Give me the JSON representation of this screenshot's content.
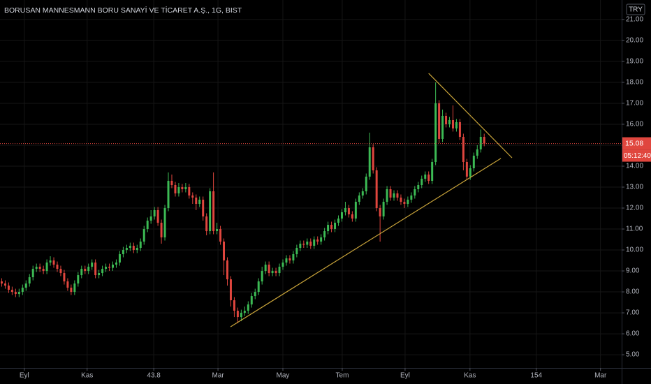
{
  "chart_data": {
    "type": "candlestick",
    "title": "BORUSAN MANNESMANN BORU SANAYİ VE TİCARET A.Ş., 1G, BIST",
    "currency": "TRY",
    "countdown": "05:12:40",
    "up_color": "#3cba54",
    "down_color": "#e0463e",
    "trend_color": "#c9a43a",
    "grid": true,
    "open": [
      8.5,
      8.4,
      8.3,
      8.1,
      8.0,
      7.9,
      8.0,
      8.2,
      8.4,
      8.7,
      9.1,
      9.2,
      9.1,
      9.0,
      9.4,
      9.5,
      9.3,
      9.1,
      8.9,
      8.5,
      8.2,
      8.0,
      8.4,
      8.8,
      9.1,
      9.0,
      9.2,
      9.4,
      8.8,
      8.9,
      9.1,
      9.2,
      9.15,
      9.3,
      9.4,
      9.8,
      10.0,
      10.1,
      10.2,
      10.0,
      10.1,
      10.4,
      11.0,
      11.4,
      11.6,
      11.9,
      11.3,
      10.6,
      12.0,
      13.3,
      13.1,
      12.7,
      13.0,
      12.9,
      13.0,
      12.6,
      12.5,
      12.2,
      12.4,
      11.6,
      10.9,
      12.8,
      10.9,
      11.0,
      10.4,
      9.5,
      8.6,
      7.6,
      7.1,
      6.8,
      7.0,
      7.1,
      7.4,
      7.8,
      8.0,
      8.5,
      9.0,
      9.3,
      8.9,
      9.0,
      8.9,
      9.2,
      9.4,
      9.6,
      9.5,
      9.8,
      10.1,
      10.3,
      10.25,
      10.4,
      10.2,
      10.5,
      10.4,
      10.6,
      10.9,
      11.2,
      11.0,
      11.3,
      11.5,
      11.8,
      12.0,
      11.7,
      11.5,
      12.3,
      12.6,
      12.8,
      13.5,
      14.9,
      13.8,
      12.0,
      11.6,
      12.3,
      12.9,
      12.5,
      12.7,
      12.5,
      12.3,
      12.2,
      12.4,
      12.6,
      12.9,
      13.1,
      13.4,
      13.6,
      13.3,
      14.2,
      17.0,
      15.3,
      16.4,
      16.0,
      16.2,
      15.8,
      16.1,
      15.4,
      14.2,
      13.5,
      13.9,
      14.5,
      14.8,
      15.4
    ],
    "high": [
      8.65,
      8.55,
      8.45,
      8.25,
      8.15,
      8.15,
      8.35,
      8.55,
      8.85,
      9.25,
      9.35,
      9.35,
      9.25,
      9.55,
      9.7,
      9.65,
      9.45,
      9.25,
      9.05,
      8.65,
      8.35,
      8.55,
      8.95,
      9.25,
      9.25,
      9.35,
      9.55,
      9.55,
      9.05,
      9.25,
      9.35,
      9.35,
      9.45,
      9.55,
      9.95,
      10.15,
      10.25,
      10.35,
      10.35,
      10.25,
      10.55,
      11.15,
      11.55,
      11.9,
      12.05,
      12.05,
      11.45,
      12.15,
      13.7,
      13.6,
      13.25,
      13.2,
      13.15,
      13.2,
      13.15,
      12.75,
      12.65,
      12.55,
      12.55,
      11.75,
      12.95,
      13.7,
      11.3,
      11.15,
      10.55,
      9.65,
      8.75,
      7.75,
      7.25,
      7.15,
      7.3,
      7.55,
      7.95,
      8.15,
      8.65,
      9.2,
      9.45,
      9.45,
      9.15,
      9.15,
      9.35,
      9.55,
      9.75,
      9.75,
      9.95,
      10.25,
      10.45,
      10.45,
      10.55,
      10.55,
      10.65,
      10.65,
      10.75,
      11.05,
      11.35,
      11.35,
      11.45,
      11.65,
      11.95,
      12.3,
      12.15,
      11.85,
      12.45,
      12.75,
      12.95,
      13.65,
      15.6,
      15.05,
      13.95,
      12.15,
      12.45,
      13.05,
      13.05,
      12.85,
      12.85,
      12.65,
      12.45,
      12.55,
      12.75,
      13.05,
      13.25,
      13.55,
      13.75,
      13.75,
      14.35,
      18.0,
      17.15,
      16.7,
      16.55,
      16.35,
      16.9,
      16.25,
      16.25,
      15.55,
      14.35,
      14.05,
      14.65,
      15.0,
      15.75,
      15.55
    ],
    "low": [
      8.25,
      8.15,
      7.95,
      7.85,
      7.75,
      7.75,
      7.85,
      8.05,
      8.25,
      8.55,
      8.95,
      8.95,
      8.85,
      8.85,
      9.25,
      9.15,
      8.95,
      8.75,
      8.35,
      8.05,
      7.85,
      7.85,
      8.25,
      8.65,
      8.85,
      8.85,
      9.05,
      8.65,
      8.65,
      8.75,
      8.95,
      9.0,
      9.0,
      9.15,
      9.25,
      9.65,
      9.85,
      9.95,
      9.85,
      9.85,
      9.95,
      10.25,
      10.85,
      11.25,
      11.45,
      11.15,
      10.3,
      10.45,
      11.85,
      12.95,
      12.55,
      12.55,
      12.75,
      12.75,
      12.45,
      12.2,
      11.9,
      12.05,
      11.4,
      10.7,
      10.75,
      10.75,
      10.75,
      10.25,
      8.8,
      8.3,
      7.3,
      6.8,
      6.5,
      6.6,
      6.85,
      6.95,
      7.25,
      7.65,
      7.85,
      8.35,
      8.85,
      8.75,
      8.75,
      8.75,
      8.75,
      9.05,
      9.25,
      9.35,
      9.35,
      9.65,
      9.95,
      10.1,
      10.1,
      10.05,
      10.05,
      10.25,
      10.25,
      10.45,
      10.75,
      10.85,
      10.85,
      11.15,
      11.35,
      11.65,
      11.55,
      11.35,
      11.35,
      12.15,
      12.45,
      12.65,
      13.35,
      13.65,
      11.85,
      10.4,
      11.45,
      12.15,
      12.35,
      12.35,
      12.35,
      12.15,
      12.0,
      12.05,
      12.25,
      12.45,
      12.75,
      12.95,
      13.25,
      13.15,
      13.15,
      14.05,
      15.1,
      15.15,
      15.85,
      15.85,
      15.65,
      15.65,
      15.25,
      13.8,
      13.35,
      13.35,
      13.75,
      14.35,
      14.65,
      14.95
    ],
    "close": [
      8.4,
      8.3,
      8.1,
      8.0,
      7.9,
      8.0,
      8.2,
      8.4,
      8.7,
      9.1,
      9.2,
      9.1,
      9.0,
      9.4,
      9.5,
      9.3,
      9.1,
      8.9,
      8.5,
      8.2,
      8.0,
      8.4,
      8.8,
      9.1,
      9.0,
      9.2,
      9.4,
      8.8,
      8.9,
      9.1,
      9.2,
      9.15,
      9.3,
      9.4,
      9.8,
      10.0,
      10.1,
      10.2,
      10.0,
      10.1,
      10.4,
      11.0,
      11.4,
      11.6,
      11.9,
      11.3,
      10.6,
      12.0,
      13.3,
      13.1,
      12.7,
      13.0,
      12.9,
      13.0,
      12.6,
      12.5,
      12.2,
      12.4,
      11.6,
      10.9,
      12.8,
      10.9,
      11.0,
      10.4,
      9.5,
      8.6,
      7.6,
      7.1,
      6.8,
      7.0,
      7.1,
      7.4,
      7.8,
      8.0,
      8.5,
      9.0,
      9.3,
      8.9,
      9.0,
      8.9,
      9.2,
      9.4,
      9.6,
      9.5,
      9.8,
      10.1,
      10.3,
      10.25,
      10.4,
      10.2,
      10.5,
      10.4,
      10.6,
      10.9,
      11.2,
      11.0,
      11.3,
      11.5,
      11.8,
      12.0,
      11.7,
      11.5,
      12.3,
      12.6,
      12.8,
      13.5,
      14.9,
      13.8,
      12.0,
      11.6,
      12.3,
      12.9,
      12.5,
      12.7,
      12.5,
      12.3,
      12.2,
      12.4,
      12.6,
      12.9,
      13.1,
      13.4,
      13.6,
      13.3,
      14.2,
      17.0,
      15.3,
      16.4,
      16.0,
      16.2,
      15.8,
      16.1,
      15.4,
      14.2,
      13.5,
      13.9,
      14.5,
      14.8,
      15.4,
      15.08
    ],
    "trendlines": [
      [
        [
          65.9,
          6.33
        ],
        [
          143.8,
          14.37
        ]
      ],
      [
        [
          123.0,
          18.43
        ],
        [
          147.0,
          14.4
        ]
      ]
    ],
    "xlim": [
      -0.5,
      178.6
    ],
    "xticks": [
      {
        "value": 6.5,
        "label": "Eyl"
      },
      {
        "value": 24.6,
        "label": "Kas"
      },
      43.8,
      {
        "value": 62.3,
        "label": "Mar"
      },
      {
        "value": 81.0,
        "label": "May"
      },
      {
        "value": 98.1,
        "label": "Tem"
      },
      {
        "value": 116.2,
        "label": "Eyl"
      },
      {
        "value": 134.9,
        "label": "Kas"
      },
      154.0,
      {
        "value": 172.5,
        "label": "Mar"
      }
    ],
    "ylim": [
      4.37,
      21.93
    ],
    "yticks": [
      {
        "value": 5,
        "label": "5.00"
      },
      {
        "value": 6,
        "label": "6.00"
      },
      {
        "value": 7,
        "label": "7.00"
      },
      {
        "value": 8,
        "label": "8.00"
      },
      {
        "value": 9,
        "label": "9.00"
      },
      {
        "value": 10,
        "label": "10.00"
      },
      {
        "value": 11,
        "label": "11.00"
      },
      {
        "value": 12,
        "label": "12.00"
      },
      {
        "value": 13,
        "label": "13.00"
      },
      {
        "value": 14,
        "label": "14.00"
      },
      {
        "value": 15,
        "label": "15.00"
      },
      {
        "value": 16,
        "label": "16.00"
      },
      {
        "value": 17,
        "label": "17.00"
      },
      {
        "value": 18,
        "label": "18.00"
      },
      {
        "value": 19,
        "label": "19.00"
      },
      {
        "value": 20,
        "label": "20.00"
      },
      {
        "value": 21,
        "label": "21.00"
      }
    ]
  }
}
